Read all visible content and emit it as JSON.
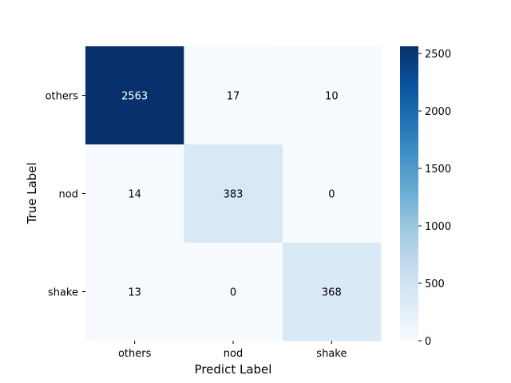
{
  "chart_data": {
    "type": "heatmap",
    "title": "",
    "xlabel": "Predict Label",
    "ylabel": "True Label",
    "x_categories": [
      "others",
      "nod",
      "shake"
    ],
    "y_categories": [
      "others",
      "nod",
      "shake"
    ],
    "values": [
      [
        2563,
        17,
        10
      ],
      [
        14,
        383,
        0
      ],
      [
        13,
        0,
        368
      ]
    ],
    "colormap": "Blues",
    "colorbar": {
      "range": [
        0,
        2563
      ],
      "ticks": [
        "0",
        "500",
        "1000",
        "1500",
        "2000",
        "2500"
      ]
    },
    "colors": {
      "low": "#f7fbff",
      "high": "#08306b",
      "text_dark": "#000000",
      "text_light": "#ffffff"
    },
    "grid": false,
    "legend": "colorbar right"
  }
}
